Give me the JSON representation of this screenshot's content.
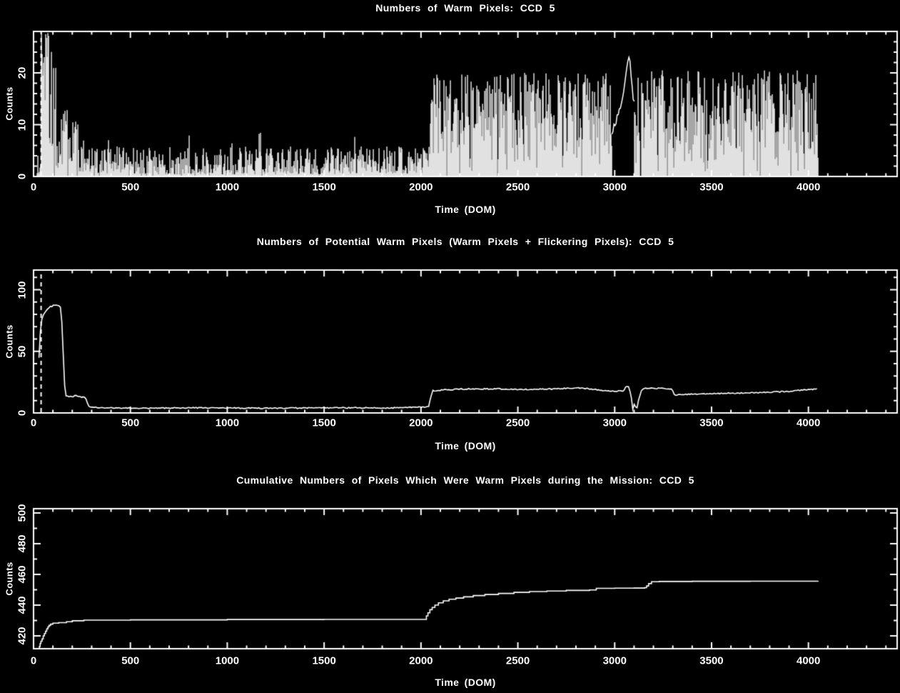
{
  "page": {
    "background": "#000000",
    "foreground": "#ffffff"
  },
  "chart_data": [
    {
      "type": "line",
      "title": "Numbers of Warm Pixels: CCD 5",
      "xlabel": "Time (DOM)",
      "ylabel": "Counts",
      "xlim": [
        0,
        4458
      ],
      "ylim": [
        0,
        28
      ],
      "xticks": [
        0,
        500,
        1000,
        1500,
        2000,
        2500,
        3000,
        3500,
        4000
      ],
      "yticks": [
        0,
        10,
        20
      ],
      "x_minor_step": 100,
      "y_minor_step": 2,
      "dashed_vline_x": 39,
      "grid": false,
      "series": {
        "kind": "noisy_histogram",
        "x_start": 18,
        "x_end": 4050,
        "segments": [
          {
            "x0": 18,
            "x1": 40,
            "lo": 0.5,
            "hi": 4.5,
            "k": 1.3,
            "gap_p": 0.05
          },
          {
            "x0": 40,
            "x1": 78,
            "lo": 1.0,
            "hi": 27.8,
            "k": 0.28,
            "gap_p": 0.0
          },
          {
            "x0": 78,
            "x1": 96,
            "lo": 1.0,
            "hi": 24.5,
            "k": 0.9,
            "gap_p": 0.02
          },
          {
            "x0": 96,
            "x1": 126,
            "lo": 1.0,
            "hi": 21.5,
            "k": 1.2,
            "gap_p": 0.03
          },
          {
            "x0": 126,
            "x1": 175,
            "lo": 1.0,
            "hi": 13.0,
            "k": 1.1,
            "gap_p": 0.03
          },
          {
            "x0": 175,
            "x1": 235,
            "lo": 1.0,
            "hi": 11.0,
            "k": 1.2,
            "gap_p": 0.03
          },
          {
            "x0": 235,
            "x1": 330,
            "lo": 0.8,
            "hi": 7.5,
            "k": 1.4,
            "gap_p": 0.03
          },
          {
            "x0": 330,
            "x1": 2045,
            "lo": 0.4,
            "hi": 5.8,
            "k": 1.5,
            "gap_p": 0.015,
            "spike_p": 0.02,
            "spike_hi": 8.5
          },
          {
            "x0": 2045,
            "x1": 2985,
            "lo": 0.5,
            "hi": 20.0,
            "k": 0.72,
            "gap_p": 0.035
          },
          {
            "x0": 2985,
            "x1": 3102,
            "smooth": [
              [
                2985,
                8
              ],
              [
                3015,
                12
              ],
              [
                3045,
                16
              ],
              [
                3058,
                20
              ],
              [
                3068,
                22.3
              ],
              [
                3080,
                22.3
              ],
              [
                3090,
                17
              ],
              [
                3102,
                14
              ]
            ],
            "jitter": 0.8
          },
          {
            "x0": 3102,
            "x1": 3158,
            "lo": 0.5,
            "hi": 21.0,
            "k": 0.7,
            "gap_p": 0.12
          },
          {
            "x0": 3158,
            "x1": 4050,
            "lo": 0.5,
            "hi": 20.5,
            "k": 0.72,
            "gap_p": 0.05
          }
        ]
      }
    },
    {
      "type": "line",
      "title": "Numbers of Potential Warm Pixels (Warm Pixels + Flickering Pixels): CCD 5",
      "xlabel": "Time (DOM)",
      "ylabel": "Counts",
      "xlim": [
        0,
        4458
      ],
      "ylim": [
        0,
        116
      ],
      "xticks": [
        0,
        500,
        1000,
        1500,
        2000,
        2500,
        3000,
        3500,
        4000
      ],
      "yticks": [
        0,
        50,
        100
      ],
      "x_minor_step": 100,
      "y_minor_step": 10,
      "dashed_vline_x": 39,
      "grid": false,
      "series": {
        "kind": "jitter_line",
        "jitter": 0.45,
        "points": [
          [
            28,
            45
          ],
          [
            32,
            60
          ],
          [
            38,
            72
          ],
          [
            44,
            77
          ],
          [
            52,
            80
          ],
          [
            60,
            82
          ],
          [
            72,
            84
          ],
          [
            85,
            86
          ],
          [
            100,
            87
          ],
          [
            115,
            88
          ],
          [
            130,
            87.5
          ],
          [
            140,
            86
          ],
          [
            148,
            70
          ],
          [
            155,
            40
          ],
          [
            162,
            18
          ],
          [
            168,
            14
          ],
          [
            180,
            13.5
          ],
          [
            200,
            13
          ],
          [
            215,
            14
          ],
          [
            230,
            13.5
          ],
          [
            250,
            13
          ],
          [
            268,
            12.5
          ],
          [
            278,
            8
          ],
          [
            290,
            4.5
          ],
          [
            400,
            4
          ],
          [
            600,
            3.8
          ],
          [
            800,
            4.2
          ],
          [
            1000,
            4
          ],
          [
            1200,
            3.8
          ],
          [
            1400,
            4
          ],
          [
            1600,
            4.2
          ],
          [
            1800,
            4
          ],
          [
            1950,
            4.5
          ],
          [
            2040,
            5
          ],
          [
            2052,
            14
          ],
          [
            2060,
            18
          ],
          [
            2100,
            18.5
          ],
          [
            2150,
            19
          ],
          [
            2250,
            19.5
          ],
          [
            2400,
            19.5
          ],
          [
            2550,
            19
          ],
          [
            2700,
            19.5
          ],
          [
            2800,
            20.5
          ],
          [
            2850,
            20
          ],
          [
            2950,
            18
          ],
          [
            3000,
            17.5
          ],
          [
            3045,
            18
          ],
          [
            3058,
            21.5
          ],
          [
            3072,
            21
          ],
          [
            3085,
            14
          ],
          [
            3094,
            2
          ],
          [
            3104,
            9
          ],
          [
            3112,
            1.5
          ],
          [
            3125,
            12
          ],
          [
            3140,
            19
          ],
          [
            3160,
            20
          ],
          [
            3250,
            20
          ],
          [
            3295,
            19.5
          ],
          [
            3310,
            14.5
          ],
          [
            3380,
            15
          ],
          [
            3470,
            15.5
          ],
          [
            3600,
            16
          ],
          [
            3750,
            16.5
          ],
          [
            3900,
            17.5
          ],
          [
            3990,
            19
          ],
          [
            4050,
            19.5
          ]
        ]
      }
    },
    {
      "type": "line",
      "title": "Cumulative Numbers of Pixels Which Were Warm Pixels during the Mission: CCD 5",
      "xlabel": "Time (DOM)",
      "ylabel": "Counts",
      "xlim": [
        0,
        4458
      ],
      "ylim": [
        411.6,
        502.8
      ],
      "xticks": [
        0,
        500,
        1000,
        1500,
        2000,
        2500,
        3000,
        3500,
        4000
      ],
      "yticks": [
        420,
        440,
        460,
        480,
        500
      ],
      "x_minor_step": 100,
      "y_minor_step": 10,
      "dashed_vline_x": null,
      "grid": false,
      "series": {
        "kind": "step_line",
        "points": [
          [
            26,
            411.6
          ],
          [
            30,
            413
          ],
          [
            34,
            415
          ],
          [
            38,
            416.5
          ],
          [
            44,
            418
          ],
          [
            50,
            420
          ],
          [
            56,
            421.5
          ],
          [
            62,
            423
          ],
          [
            68,
            424.5
          ],
          [
            74,
            425.8
          ],
          [
            80,
            426.8
          ],
          [
            88,
            427.6
          ],
          [
            100,
            428.2
          ],
          [
            130,
            428.6
          ],
          [
            170,
            429.2
          ],
          [
            200,
            429.8
          ],
          [
            260,
            430.2
          ],
          [
            500,
            430.4
          ],
          [
            1000,
            430.6
          ],
          [
            1500,
            430.7
          ],
          [
            2020,
            430.7
          ],
          [
            2028,
            433
          ],
          [
            2036,
            435
          ],
          [
            2046,
            437
          ],
          [
            2058,
            438.5
          ],
          [
            2072,
            440
          ],
          [
            2090,
            441.5
          ],
          [
            2115,
            442.8
          ],
          [
            2145,
            443.8
          ],
          [
            2180,
            444.6
          ],
          [
            2220,
            445.4
          ],
          [
            2270,
            446.2
          ],
          [
            2330,
            446.9
          ],
          [
            2400,
            447.6
          ],
          [
            2480,
            448.3
          ],
          [
            2560,
            448.8
          ],
          [
            2650,
            449.2
          ],
          [
            2750,
            449.6
          ],
          [
            2870,
            449.9
          ],
          [
            2905,
            450.9
          ],
          [
            3000,
            451
          ],
          [
            3100,
            451.1
          ],
          [
            3155,
            451.4
          ],
          [
            3165,
            452.5
          ],
          [
            3175,
            454
          ],
          [
            3190,
            455.2
          ],
          [
            3230,
            455.4
          ],
          [
            3400,
            455.5
          ],
          [
            3700,
            455.6
          ],
          [
            4050,
            455.7
          ]
        ]
      }
    }
  ]
}
